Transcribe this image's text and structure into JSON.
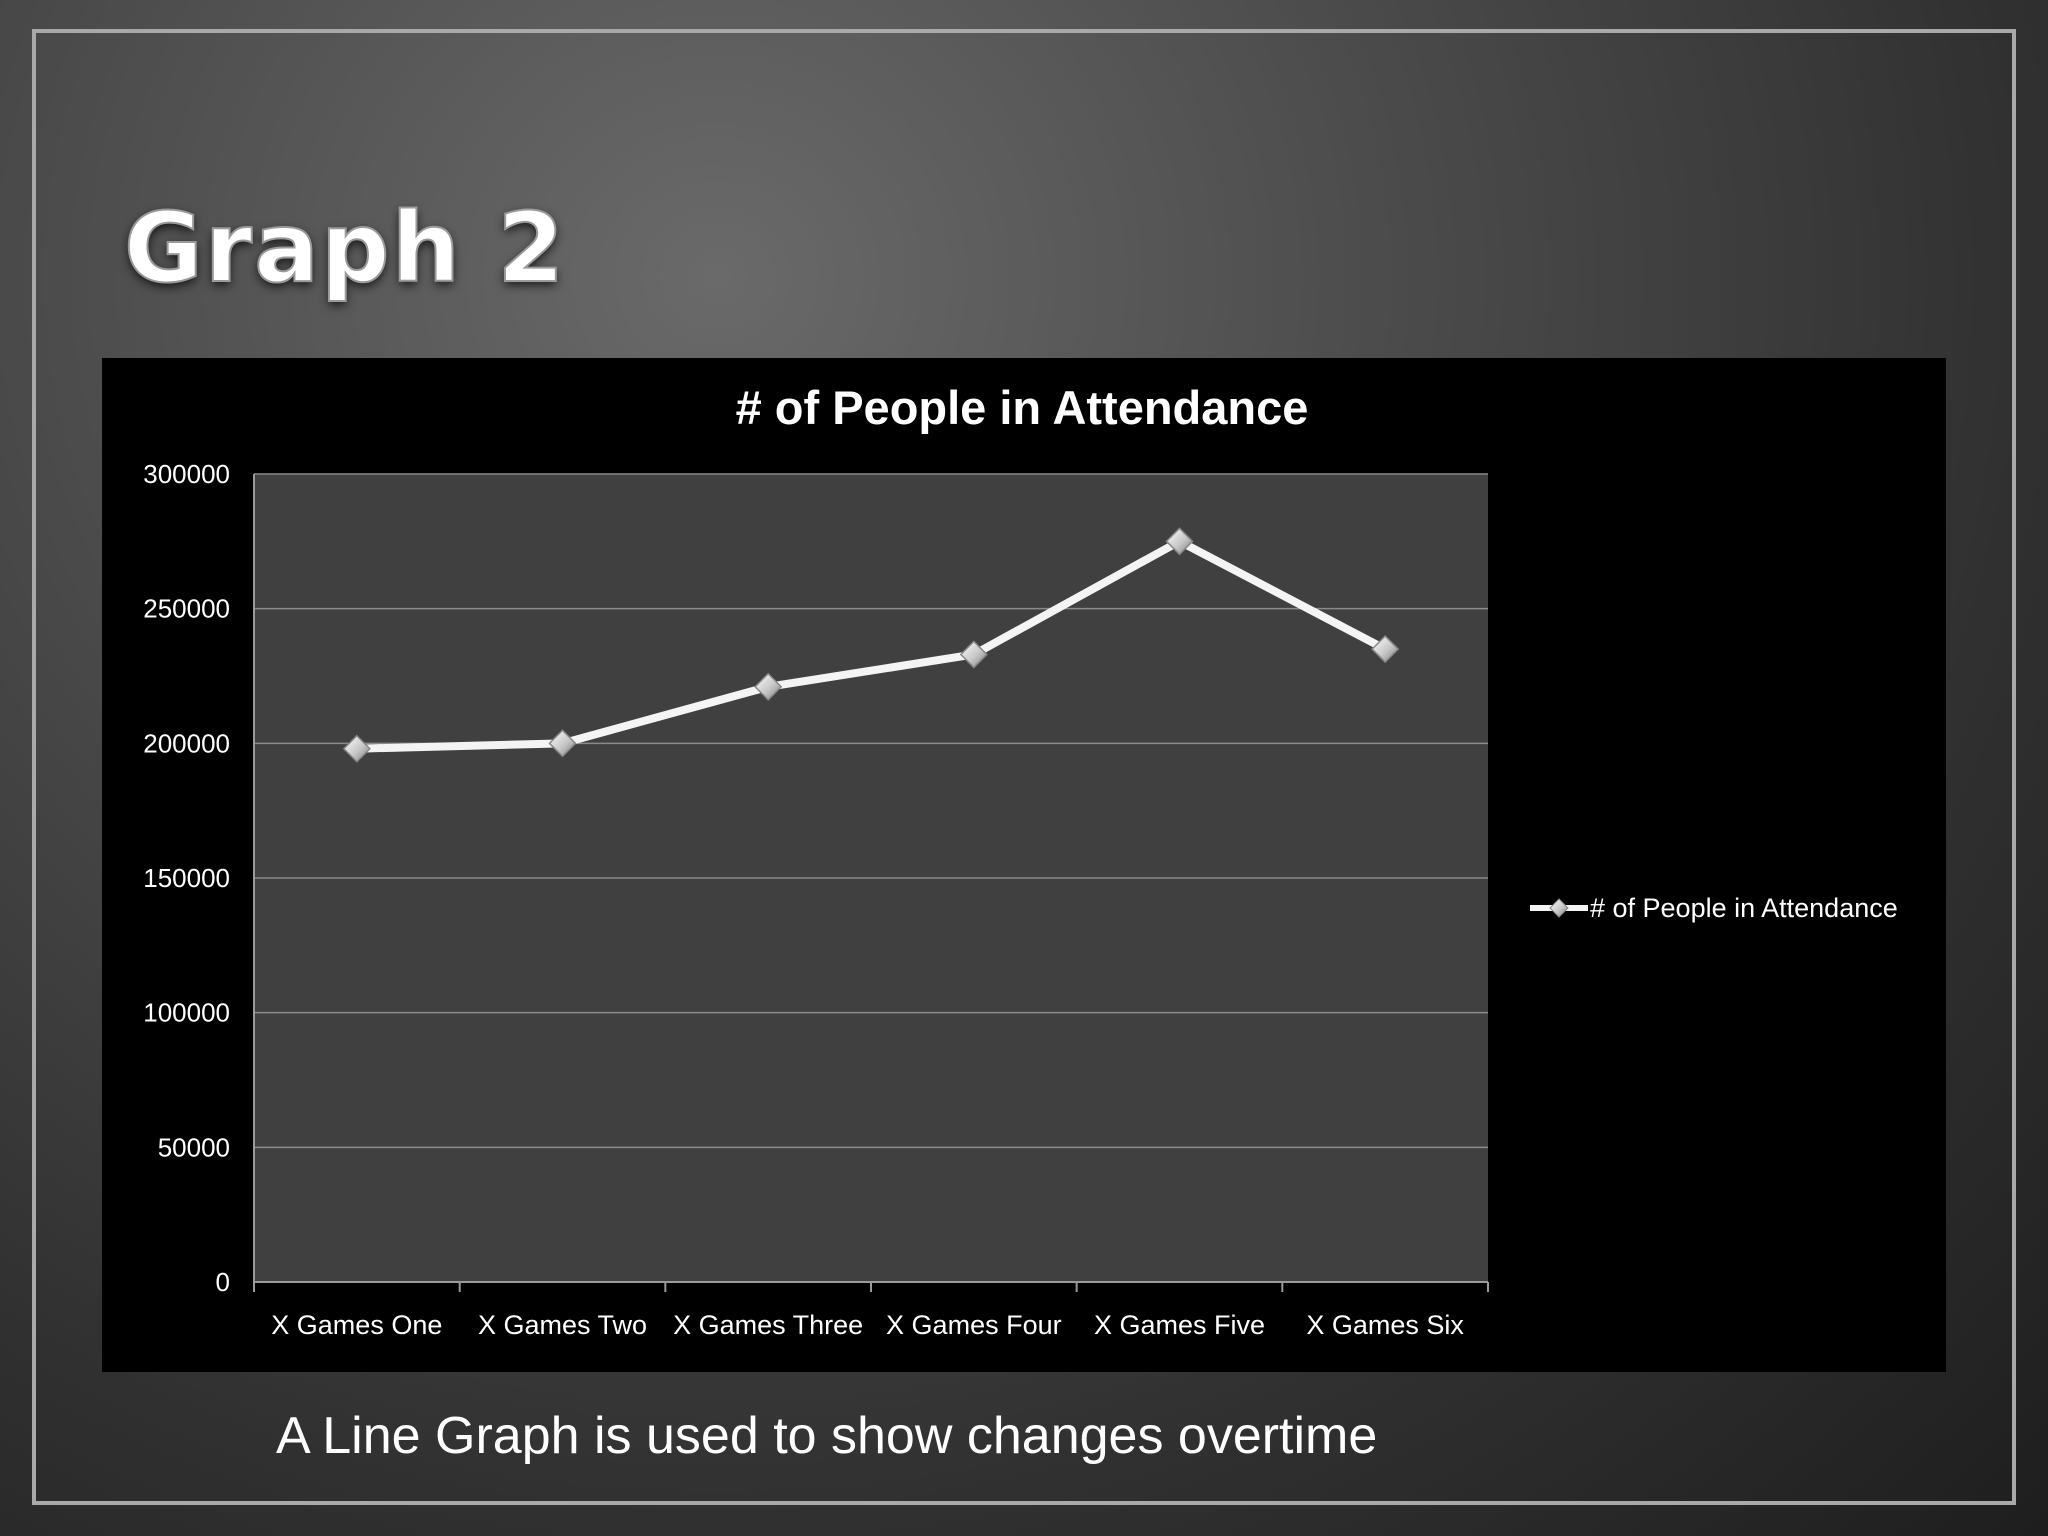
{
  "slide": {
    "title": "Graph 2",
    "caption": "A Line Graph is used to show changes overtime"
  },
  "chart_data": {
    "type": "line",
    "title": "# of People in Attendance",
    "categories": [
      "X Games One",
      "X Games Two",
      "X Games Three",
      "X Games Four",
      "X Games Five",
      "X Games Six"
    ],
    "series": [
      {
        "name": "# of People in Attendance",
        "values": [
          198000,
          200000,
          221000,
          233000,
          275000,
          235000
        ]
      }
    ],
    "ylim": [
      0,
      300000
    ],
    "yticks": [
      "0",
      "50000",
      "100000",
      "150000",
      "200000",
      "250000",
      "300000"
    ],
    "grid": true,
    "legend_position": "right",
    "colors": {
      "chart_background": "#000000",
      "plot_area": "#404040",
      "gridline": "#8a8a8a",
      "line": "#f4f4f4",
      "marker": "#d8d8d8",
      "text": "#ffffff"
    }
  }
}
